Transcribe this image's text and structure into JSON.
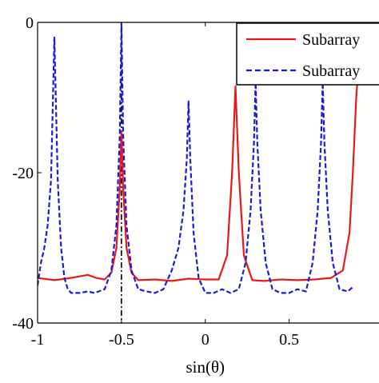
{
  "chart_data": {
    "type": "line",
    "xlabel": "sin(θ)",
    "ylabel": "",
    "xlim": [
      -1,
      1.05
    ],
    "ylim": [
      -40,
      0
    ],
    "xticks": [
      -1,
      -0.5,
      0,
      0.5
    ],
    "xtick_labels": [
      "-1",
      "-0.5",
      "0",
      "0.5"
    ],
    "yticks": [
      0,
      -20,
      -40
    ],
    "ytick_labels": [
      "0",
      "-20",
      "-40"
    ],
    "legend_position": "top-right",
    "reference_line": {
      "x": -0.5,
      "style": "dash-dot",
      "color": "#000000"
    },
    "series": [
      {
        "name": "Subarray",
        "color": "#e8191a",
        "style": "solid",
        "x": [
          -1,
          -0.9,
          -0.8,
          -0.7,
          -0.65,
          -0.6,
          -0.56,
          -0.53,
          -0.51,
          -0.5,
          -0.49,
          -0.47,
          -0.44,
          -0.4,
          -0.3,
          -0.2,
          -0.1,
          0,
          0.08,
          0.13,
          0.16,
          0.18,
          0.2,
          0.23,
          0.28,
          0.35,
          0.45,
          0.55,
          0.65,
          0.75,
          0.82,
          0.86,
          0.88,
          0.9,
          0.93
        ],
        "y": [
          -34,
          -34.3,
          -34,
          -33.6,
          -34,
          -34.2,
          -33.3,
          -30,
          -22,
          -14.5,
          -22,
          -30,
          -33.3,
          -34.3,
          -34.2,
          -34.4,
          -34.1,
          -34.2,
          -34.2,
          -31,
          -20,
          -8.5,
          -20,
          -31,
          -34.3,
          -34.4,
          -34.2,
          -34.3,
          -34.2,
          -34,
          -33,
          -28,
          -20,
          -10,
          -1
        ]
      },
      {
        "name": "Subarray",
        "color": "#1b1bd6",
        "style": "dashed",
        "x": [
          -1,
          -0.98,
          -0.96,
          -0.94,
          -0.92,
          -0.9,
          -0.88,
          -0.86,
          -0.84,
          -0.82,
          -0.8,
          -0.75,
          -0.7,
          -0.66,
          -0.6,
          -0.56,
          -0.53,
          -0.51,
          -0.5,
          -0.49,
          -0.47,
          -0.44,
          -0.4,
          -0.35,
          -0.3,
          -0.25,
          -0.2,
          -0.16,
          -0.13,
          -0.11,
          -0.1,
          -0.09,
          -0.07,
          -0.04,
          0,
          0.05,
          0.1,
          0.15,
          0.2,
          0.24,
          0.27,
          0.29,
          0.3,
          0.31,
          0.33,
          0.36,
          0.4,
          0.45,
          0.5,
          0.55,
          0.6,
          0.64,
          0.67,
          0.69,
          0.7,
          0.71,
          0.73,
          0.76,
          0.8,
          0.85,
          0.88
        ],
        "y": [
          -35,
          -32,
          -30,
          -27,
          -21,
          -2,
          -21,
          -30,
          -34,
          -35.5,
          -36,
          -36,
          -35.8,
          -36,
          -35.5,
          -33,
          -27,
          -15,
          0,
          -15,
          -27,
          -33,
          -35.5,
          -35.8,
          -36,
          -35.5,
          -33,
          -30,
          -25,
          -18,
          -10.5,
          -18,
          -28,
          -34,
          -36,
          -36,
          -35.5,
          -36,
          -35.5,
          -32,
          -25,
          -16,
          -8,
          -16,
          -25,
          -32,
          -35.5,
          -36,
          -36,
          -35.5,
          -35.8,
          -32,
          -25,
          -16,
          -8,
          -16,
          -25,
          -32,
          -35.5,
          -35.8,
          -35.2
        ]
      }
    ]
  }
}
